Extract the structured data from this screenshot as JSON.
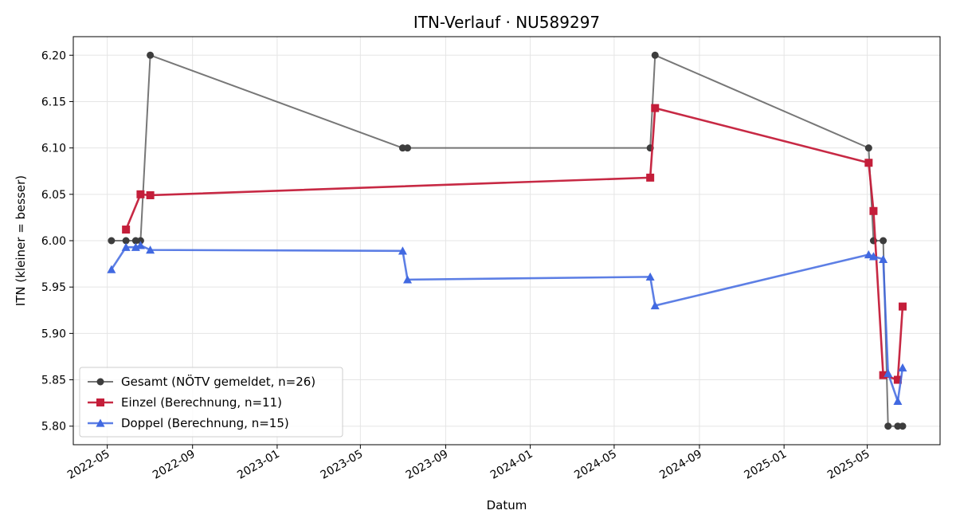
{
  "chart_data": {
    "type": "line",
    "title": "ITN-Verlauf · NU589297",
    "xlabel": "Datum",
    "ylabel": "ITN  (kleiner = besser)",
    "x_axis": {
      "type": "date",
      "range": [
        "2022-03-13",
        "2025-08-14"
      ],
      "ticks": [
        "2022-05-01",
        "2022-09-01",
        "2023-01-01",
        "2023-05-01",
        "2023-09-01",
        "2024-01-01",
        "2024-05-01",
        "2024-09-01",
        "2025-01-01",
        "2025-05-01"
      ],
      "tick_labels": [
        "2022-05",
        "2022-09",
        "2023-01",
        "2023-05",
        "2023-09",
        "2024-01",
        "2024-05",
        "2024-09",
        "2025-01",
        "2025-05"
      ]
    },
    "y_axis": {
      "range": [
        5.78,
        6.22
      ],
      "ticks": [
        5.8,
        5.85,
        5.9,
        5.95,
        6.0,
        6.05,
        6.1,
        6.15,
        6.2
      ],
      "tick_labels": [
        "5.80",
        "5.85",
        "5.90",
        "5.95",
        "6.00",
        "6.05",
        "6.10",
        "6.15",
        "6.20"
      ]
    },
    "grid": true,
    "legend_position": "lower-left",
    "series": [
      {
        "name": "Gesamt (NÖTV gemeldet, n=26)",
        "color": "#555555",
        "marker": "circle",
        "points": [
          {
            "x": "2022-05-07",
            "y": 6.0
          },
          {
            "x": "2022-05-28",
            "y": 6.0
          },
          {
            "x": "2022-06-11",
            "y": 6.0
          },
          {
            "x": "2022-06-18",
            "y": 6.0
          },
          {
            "x": "2022-07-02",
            "y": 6.2
          },
          {
            "x": "2023-07-01",
            "y": 6.1
          },
          {
            "x": "2023-07-08",
            "y": 6.1
          },
          {
            "x": "2024-06-22",
            "y": 6.1
          },
          {
            "x": "2024-06-29",
            "y": 6.2
          },
          {
            "x": "2025-05-03",
            "y": 6.1
          },
          {
            "x": "2025-05-10",
            "y": 6.0
          },
          {
            "x": "2025-05-24",
            "y": 6.0
          },
          {
            "x": "2025-05-31",
            "y": 5.8
          },
          {
            "x": "2025-06-14",
            "y": 5.8
          },
          {
            "x": "2025-06-21",
            "y": 5.8
          }
        ]
      },
      {
        "name": "Einzel (Berechnung, n=11)",
        "color": "#c41e3a",
        "marker": "square",
        "points": [
          {
            "x": "2022-05-28",
            "y": 6.012
          },
          {
            "x": "2022-06-18",
            "y": 6.05
          },
          {
            "x": "2022-07-02",
            "y": 6.049
          },
          {
            "x": "2024-06-22",
            "y": 6.068
          },
          {
            "x": "2024-06-29",
            "y": 6.143
          },
          {
            "x": "2025-05-03",
            "y": 6.084
          },
          {
            "x": "2025-05-10",
            "y": 6.032
          },
          {
            "x": "2025-05-24",
            "y": 5.855
          },
          {
            "x": "2025-06-14",
            "y": 5.85
          },
          {
            "x": "2025-06-21",
            "y": 5.929
          }
        ]
      },
      {
        "name": "Doppel (Berechnung, n=15)",
        "color": "#4169e1",
        "marker": "triangle",
        "points": [
          {
            "x": "2022-05-07",
            "y": 5.969
          },
          {
            "x": "2022-05-28",
            "y": 5.993
          },
          {
            "x": "2022-06-11",
            "y": 5.993
          },
          {
            "x": "2022-06-18",
            "y": 5.995
          },
          {
            "x": "2022-07-02",
            "y": 5.99
          },
          {
            "x": "2023-07-01",
            "y": 5.989
          },
          {
            "x": "2023-07-08",
            "y": 5.958
          },
          {
            "x": "2024-06-22",
            "y": 5.961
          },
          {
            "x": "2024-06-29",
            "y": 5.93
          },
          {
            "x": "2025-05-03",
            "y": 5.985
          },
          {
            "x": "2025-05-10",
            "y": 5.983
          },
          {
            "x": "2025-05-24",
            "y": 5.98
          },
          {
            "x": "2025-05-31",
            "y": 5.857
          },
          {
            "x": "2025-06-14",
            "y": 5.827
          },
          {
            "x": "2025-06-21",
            "y": 5.863
          }
        ]
      }
    ]
  }
}
